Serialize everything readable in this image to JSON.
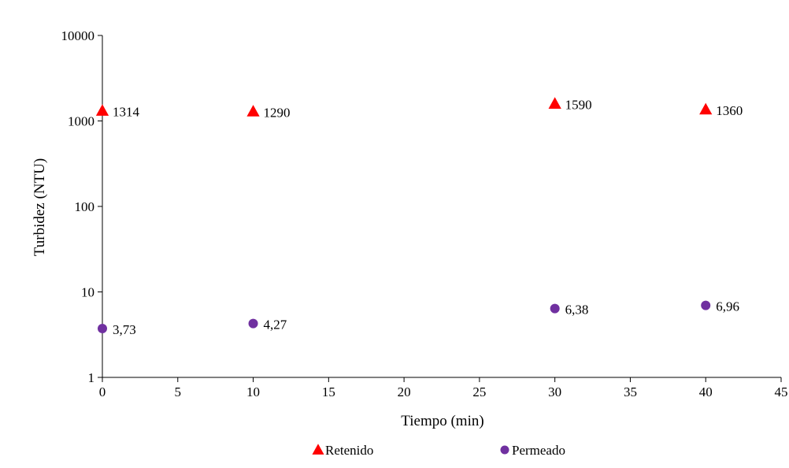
{
  "chart_data": {
    "type": "scatter",
    "xlabel": "Tiempo (min)",
    "ylabel": "Turbidez (NTU)",
    "xlim": [
      0,
      45
    ],
    "ylim": [
      1,
      10000
    ],
    "y_scale": "log",
    "x_ticks": [
      0,
      5,
      10,
      15,
      20,
      25,
      30,
      35,
      40,
      45
    ],
    "y_ticks": [
      1,
      10,
      100,
      1000,
      10000
    ],
    "grid": false,
    "legend_position": "bottom",
    "series": [
      {
        "name": "Retenido",
        "marker": "triangle",
        "color": "#ff0000",
        "x": [
          0,
          10,
          30,
          40
        ],
        "y": [
          1314,
          1290,
          1590,
          1360
        ],
        "labels": [
          "1314",
          "1290",
          "1590",
          "1360"
        ]
      },
      {
        "name": "Permeado",
        "marker": "circle",
        "color": "#7030a0",
        "x": [
          0,
          10,
          30,
          40
        ],
        "y": [
          3.73,
          4.27,
          6.38,
          6.96
        ],
        "labels": [
          "3,73",
          "4,27",
          "6,38",
          "6,96"
        ]
      }
    ]
  }
}
